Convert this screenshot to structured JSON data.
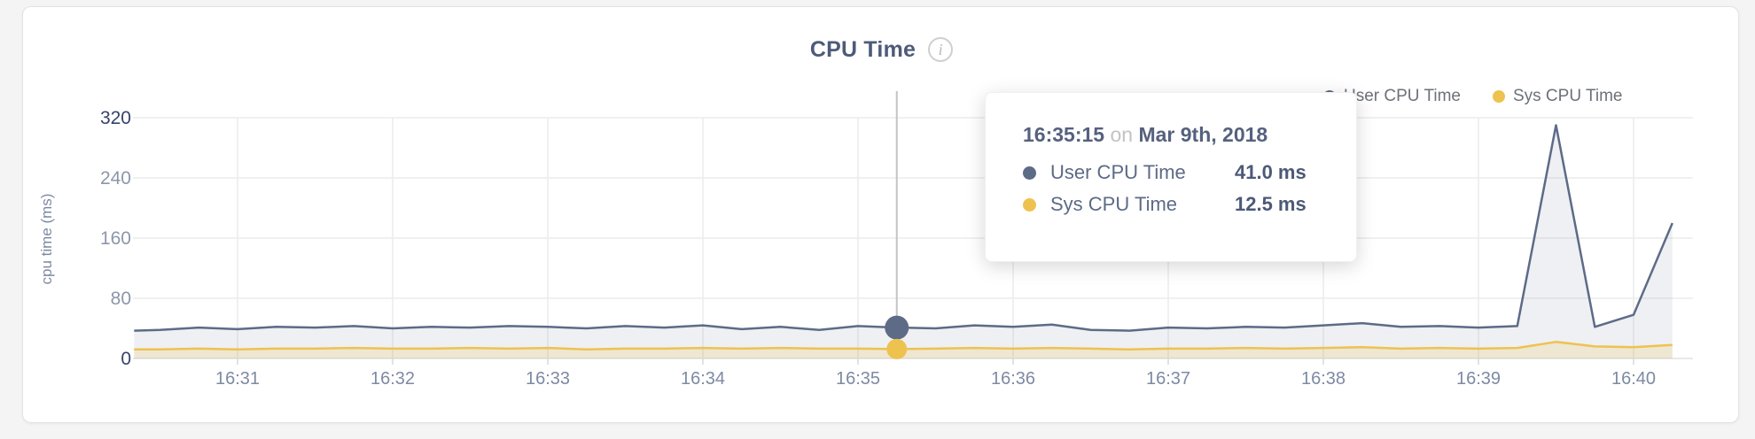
{
  "header": {
    "title": "CPU Time",
    "info_glyph": "i"
  },
  "legend": {
    "items": [
      {
        "label": "User CPU Time",
        "color": "#5d6b87"
      },
      {
        "label": "Sys CPU Time",
        "color": "#eec24f"
      }
    ]
  },
  "tooltip": {
    "time": "16:35:15",
    "separator": "on",
    "date": "Mar 9th, 2018",
    "rows": [
      {
        "label": "User CPU Time",
        "value": "41.0 ms",
        "color": "#5d6b87"
      },
      {
        "label": "Sys CPU Time",
        "value": "12.5 ms",
        "color": "#eec24f"
      }
    ]
  },
  "chart_data": {
    "type": "area",
    "title": "CPU Time",
    "xlabel": "",
    "ylabel": "cpu time (ms)",
    "ylim": [
      0,
      320
    ],
    "y_ticks": [
      0,
      80,
      160,
      240,
      320
    ],
    "x_tick_labels": [
      "16:31",
      "16:32",
      "16:33",
      "16:34",
      "16:35",
      "16:36",
      "16:37",
      "16:38",
      "16:39",
      "16:40"
    ],
    "grid": true,
    "legend_position": "top-right",
    "x": [
      "16:30:20",
      "16:30:30",
      "16:30:45",
      "16:31:00",
      "16:31:15",
      "16:31:30",
      "16:31:45",
      "16:32:00",
      "16:32:15",
      "16:32:30",
      "16:32:45",
      "16:33:00",
      "16:33:15",
      "16:33:30",
      "16:33:45",
      "16:34:00",
      "16:34:15",
      "16:34:30",
      "16:34:45",
      "16:35:00",
      "16:35:15",
      "16:35:30",
      "16:35:45",
      "16:36:00",
      "16:36:15",
      "16:36:30",
      "16:36:45",
      "16:37:00",
      "16:37:15",
      "16:37:30",
      "16:37:45",
      "16:38:00",
      "16:38:15",
      "16:38:30",
      "16:38:45",
      "16:39:00",
      "16:39:15",
      "16:39:30",
      "16:39:45",
      "16:40:00",
      "16:40:15"
    ],
    "series": [
      {
        "name": "User CPU Time",
        "color": "#5d6b87",
        "values": [
          37,
          38,
          41,
          39,
          42,
          41,
          43,
          40,
          42,
          41,
          43,
          42,
          40,
          43,
          41,
          44,
          39,
          42,
          38,
          43,
          41,
          40,
          44,
          42,
          45,
          38,
          37,
          41,
          40,
          42,
          41,
          44,
          47,
          42,
          43,
          41,
          43,
          310,
          42,
          58,
          180
        ]
      },
      {
        "name": "Sys CPU Time",
        "color": "#eec24f",
        "values": [
          12,
          12,
          13,
          12,
          13,
          13,
          14,
          13,
          13,
          14,
          13,
          14,
          12,
          13,
          13,
          14,
          13,
          14,
          13,
          13,
          12.5,
          13,
          14,
          13,
          14,
          13,
          12,
          13,
          13,
          14,
          13,
          14,
          15,
          13,
          14,
          13,
          14,
          22,
          16,
          15,
          18
        ]
      }
    ],
    "hover": {
      "x": "16:35:15",
      "values": [
        41.0,
        12.5
      ]
    }
  },
  "colors": {
    "page_bg": "#f4f4f5",
    "card_bg": "#ffffff",
    "grid_line": "#ececec",
    "baseline": "#e2e2e4",
    "tick_mark": "#d8d8d8",
    "axis_strong": "#36436a",
    "axis_muted": "#8d97aa",
    "x_tick_text": "#7e8aa3",
    "ylabel_text": "#7d89a3",
    "hover_line": "#c4c4c4",
    "user_fill": "rgba(93,107,135,0.10)",
    "sys_fill": "rgba(238,194,78,0.20)"
  }
}
